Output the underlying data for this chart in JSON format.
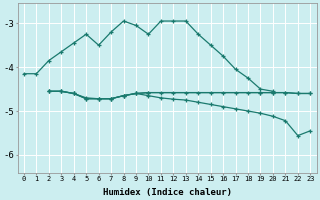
{
  "xlabel": "Humidex (Indice chaleur)",
  "background_color": "#cceef0",
  "grid_color": "#ffffff",
  "line_color": "#1a7a6e",
  "xlim": [
    -0.5,
    23.5
  ],
  "ylim": [
    -6.4,
    -2.55
  ],
  "yticks": [
    -6,
    -5,
    -4,
    -3
  ],
  "xticks": [
    0,
    1,
    2,
    3,
    4,
    5,
    6,
    7,
    8,
    9,
    10,
    11,
    12,
    13,
    14,
    15,
    16,
    17,
    18,
    19,
    20,
    21,
    22,
    23
  ],
  "curve1_x": [
    0,
    1,
    2,
    3,
    4,
    5,
    6,
    7,
    8,
    9,
    10,
    11,
    12,
    13,
    14,
    15,
    16,
    17,
    18,
    19,
    20
  ],
  "curve1_y": [
    -4.15,
    -4.15,
    -3.85,
    -3.65,
    -3.45,
    -3.25,
    -3.5,
    -3.2,
    -2.95,
    -3.05,
    -3.25,
    -2.95,
    -2.95,
    -2.95,
    -3.25,
    -3.5,
    -3.75,
    -4.05,
    -4.25,
    -4.5,
    -4.55
  ],
  "curve2_x": [
    2,
    3,
    4,
    5,
    6,
    7,
    8,
    9,
    10,
    11,
    12,
    13,
    14,
    15,
    16,
    17,
    18,
    19,
    20,
    21,
    22,
    23
  ],
  "curve2_y": [
    -4.55,
    -4.55,
    -4.6,
    -4.7,
    -4.72,
    -4.72,
    -4.65,
    -4.6,
    -4.58,
    -4.58,
    -4.58,
    -4.58,
    -4.58,
    -4.58,
    -4.58,
    -4.58,
    -4.58,
    -4.58,
    -4.58,
    -4.58,
    -4.6,
    -4.6
  ],
  "curve3_x": [
    2,
    3,
    4,
    5,
    6,
    7,
    8,
    9,
    10,
    11,
    12,
    13,
    14,
    15,
    16,
    17,
    18,
    19,
    20,
    21,
    22,
    23
  ],
  "curve3_y": [
    -4.55,
    -4.55,
    -4.6,
    -4.72,
    -4.72,
    -4.72,
    -4.65,
    -4.6,
    -4.65,
    -4.7,
    -4.73,
    -4.75,
    -4.8,
    -4.85,
    -4.9,
    -4.95,
    -5.0,
    -5.05,
    -5.12,
    -5.22,
    -5.56,
    -5.45
  ],
  "curve4_x": [
    2,
    3,
    4,
    5,
    6,
    7,
    8,
    9,
    10,
    19,
    20,
    21,
    22,
    23
  ],
  "curve4_y": [
    -4.55,
    -4.55,
    -4.6,
    -4.72,
    -4.72,
    -4.72,
    -4.65,
    -4.6,
    -4.58,
    -4.58,
    -4.58,
    -4.58,
    -4.6,
    -4.6
  ]
}
